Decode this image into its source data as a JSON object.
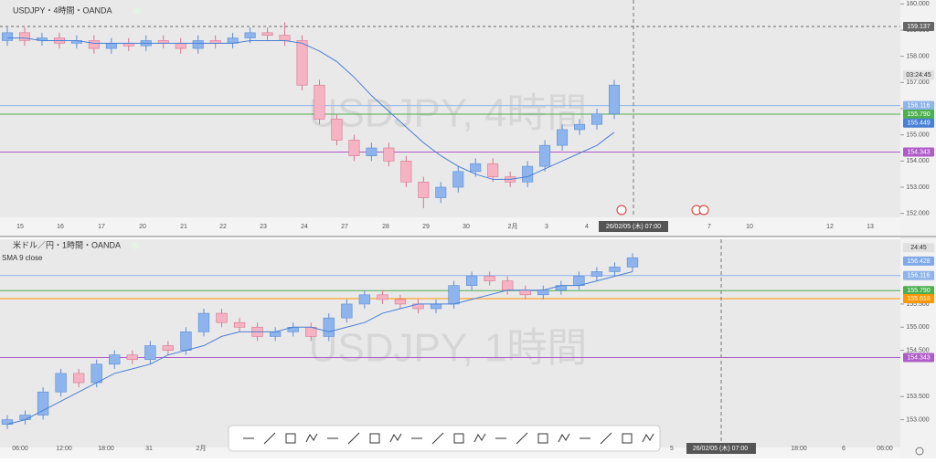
{
  "chart_data": [
    {
      "type": "candlestick",
      "title": "USDJPY・4時間・OANDA",
      "watermark": "USDJPY, 4時間",
      "x_labels": [
        "15",
        "16",
        "17",
        "20",
        "21",
        "22",
        "23",
        "24",
        "27",
        "28",
        "29",
        "30",
        "2月",
        "3",
        "4",
        "26/02/05 (木)  07:00",
        "7",
        "10",
        "12",
        "13"
      ],
      "open": [
        158.6,
        158.9,
        158.6,
        158.7,
        158.5,
        158.6,
        158.3,
        158.5,
        158.4,
        158.6,
        158.5,
        158.3,
        158.6,
        158.5,
        158.7,
        158.9,
        158.8,
        158.6,
        156.9,
        155.6,
        154.8,
        154.2,
        154.5,
        154.0,
        153.2,
        152.6,
        153.0,
        153.6,
        153.9,
        153.4,
        153.2,
        153.8,
        154.6,
        155.2,
        155.4,
        155.8
      ],
      "high": [
        159.1,
        159.1,
        158.9,
        158.9,
        158.8,
        158.8,
        158.7,
        158.7,
        158.8,
        158.8,
        158.7,
        158.8,
        158.8,
        158.9,
        159.1,
        159.1,
        159.3,
        158.8,
        157.1,
        155.8,
        155.0,
        154.7,
        154.7,
        154.2,
        153.4,
        153.2,
        153.8,
        154.1,
        154.1,
        153.6,
        154.0,
        154.8,
        155.4,
        155.6,
        156.0,
        157.1
      ],
      "low": [
        158.4,
        158.4,
        158.4,
        158.3,
        158.3,
        158.1,
        158.1,
        158.2,
        158.2,
        158.3,
        158.1,
        158.1,
        158.3,
        158.3,
        158.5,
        158.6,
        158.4,
        156.7,
        155.4,
        154.6,
        154.0,
        154.0,
        153.8,
        153.0,
        152.2,
        152.4,
        152.8,
        153.4,
        153.2,
        153.0,
        153.0,
        153.6,
        154.4,
        155.0,
        155.2,
        155.6
      ],
      "close": [
        158.9,
        158.6,
        158.7,
        158.5,
        158.6,
        158.3,
        158.5,
        158.4,
        158.6,
        158.5,
        158.3,
        158.6,
        158.5,
        158.7,
        158.9,
        158.8,
        158.6,
        156.9,
        155.6,
        154.8,
        154.2,
        154.5,
        154.0,
        153.2,
        152.6,
        153.0,
        153.6,
        153.9,
        153.4,
        153.2,
        153.8,
        154.6,
        155.2,
        155.4,
        155.8,
        156.9
      ],
      "sma": {
        "color": "#4a7fd6",
        "values": [
          158.7,
          158.7,
          158.6,
          158.6,
          158.6,
          158.5,
          158.5,
          158.5,
          158.5,
          158.5,
          158.5,
          158.5,
          158.5,
          158.5,
          158.6,
          158.6,
          158.6,
          158.5,
          158.2,
          157.8,
          157.2,
          156.5,
          155.9,
          155.3,
          154.7,
          154.2,
          153.8,
          153.5,
          153.3,
          153.3,
          153.4,
          153.7,
          154.0,
          154.3,
          154.6,
          155.1
        ]
      },
      "up_color": "#8db4ec",
      "down_color": "#f5b3c4",
      "ylim": [
        151.85,
        160.15
      ],
      "yticks": [
        {
          "value": 152,
          "label": "152.000"
        },
        {
          "value": 153,
          "label": "153.000"
        },
        {
          "value": 154,
          "label": "154.000"
        },
        {
          "value": 155,
          "label": "155.000"
        },
        {
          "value": 156,
          "label": "156.000"
        },
        {
          "value": 157,
          "label": "157.000"
        },
        {
          "value": 158,
          "label": "158.000"
        },
        {
          "value": 159,
          "label": "159.000"
        },
        {
          "value": 160,
          "label": "160.000"
        }
      ],
      "price_lines": [
        {
          "value": 159.137,
          "label": "159.137",
          "color": "#666666",
          "dashed": true
        },
        {
          "value": 156.116,
          "label": "156.116",
          "color": "#8fb4ea"
        },
        {
          "value": 155.79,
          "label": "155.790",
          "color": "#4caf50"
        },
        {
          "value": 155.449,
          "label": "155.449",
          "color": "#4a7fd6",
          "line": false
        },
        {
          "value": 154.343,
          "label": "154.343",
          "color": "#b05cc8"
        }
      ],
      "countdown": "03:24:45"
    },
    {
      "type": "candlestick",
      "title": "米ドル／円・1時間・OANDA",
      "indicator_label": "SMA 9 close",
      "watermark": "USDJPY, 1時間",
      "x_labels": [
        "06:00",
        "12:00",
        "18:00",
        "31",
        "2月",
        "5",
        "26/02/05 (木)  07:00",
        "18:00",
        "6",
        "06:00"
      ],
      "open": [
        152.9,
        153.0,
        153.1,
        153.6,
        154.0,
        153.8,
        154.2,
        154.4,
        154.3,
        154.6,
        154.5,
        154.9,
        155.3,
        155.1,
        155.0,
        154.8,
        154.9,
        155.0,
        154.8,
        155.2,
        155.5,
        155.7,
        155.6,
        155.5,
        155.4,
        155.5,
        155.9,
        156.1,
        156.0,
        155.8,
        155.7,
        155.8,
        155.9,
        156.1,
        156.2,
        156.3
      ],
      "high": [
        153.1,
        153.2,
        153.7,
        154.1,
        154.1,
        154.3,
        154.5,
        154.5,
        154.7,
        154.7,
        155.0,
        155.4,
        155.4,
        155.2,
        155.1,
        155.0,
        155.1,
        155.1,
        155.3,
        155.6,
        155.8,
        155.8,
        155.7,
        155.6,
        155.6,
        156.0,
        156.2,
        156.2,
        156.1,
        155.9,
        155.9,
        156.0,
        156.2,
        156.3,
        156.4,
        156.6
      ],
      "low": [
        152.8,
        152.9,
        153.0,
        153.5,
        153.7,
        153.7,
        154.1,
        154.2,
        154.2,
        154.4,
        154.4,
        154.8,
        155.0,
        154.9,
        154.7,
        154.7,
        154.8,
        154.7,
        154.7,
        155.1,
        155.4,
        155.5,
        155.4,
        155.3,
        155.3,
        155.4,
        155.8,
        155.9,
        155.7,
        155.6,
        155.6,
        155.7,
        155.8,
        156.0,
        156.1,
        156.2
      ],
      "close": [
        153.0,
        153.1,
        153.6,
        154.0,
        153.8,
        154.2,
        154.4,
        154.3,
        154.6,
        154.5,
        154.9,
        155.3,
        155.1,
        155.0,
        154.8,
        154.9,
        155.0,
        154.8,
        155.2,
        155.5,
        155.7,
        155.6,
        155.5,
        155.4,
        155.5,
        155.9,
        156.1,
        156.0,
        155.8,
        155.7,
        155.8,
        155.9,
        156.1,
        156.2,
        156.3,
        156.5
      ],
      "sma": {
        "color": "#4a7fd6",
        "values": [
          152.9,
          153.0,
          153.2,
          153.4,
          153.6,
          153.8,
          154.0,
          154.1,
          154.2,
          154.4,
          154.5,
          154.6,
          154.8,
          154.9,
          154.9,
          154.9,
          155.0,
          155.0,
          154.9,
          155.0,
          155.1,
          155.3,
          155.4,
          155.5,
          155.5,
          155.5,
          155.6,
          155.7,
          155.8,
          155.8,
          155.8,
          155.9,
          155.9,
          156.0,
          156.1,
          156.2
        ]
      },
      "up_color": "#8db4ec",
      "down_color": "#f5b3c4",
      "ylim": [
        152.4,
        156.9
      ],
      "yticks": [
        {
          "value": 153,
          "label": "153.000"
        },
        {
          "value": 153.5,
          "label": "153.500"
        },
        {
          "value": 154.5,
          "label": "154.500"
        },
        {
          "value": 155,
          "label": "155.000"
        },
        {
          "value": 155.5,
          "label": "155.500"
        }
      ],
      "price_lines": [
        {
          "value": 156.428,
          "label": "156.428",
          "color": "#7fa9e8",
          "line": false
        },
        {
          "value": 156.116,
          "label": "156.116",
          "color": "#8fb4ea"
        },
        {
          "value": 155.79,
          "label": "155.790",
          "color": "#4caf50"
        },
        {
          "value": 155.618,
          "label": "155.618",
          "color": "#ff9800"
        },
        {
          "value": 154.343,
          "label": "154.343",
          "color": "#b05cc8"
        }
      ],
      "countdown": "24:45"
    }
  ]
}
